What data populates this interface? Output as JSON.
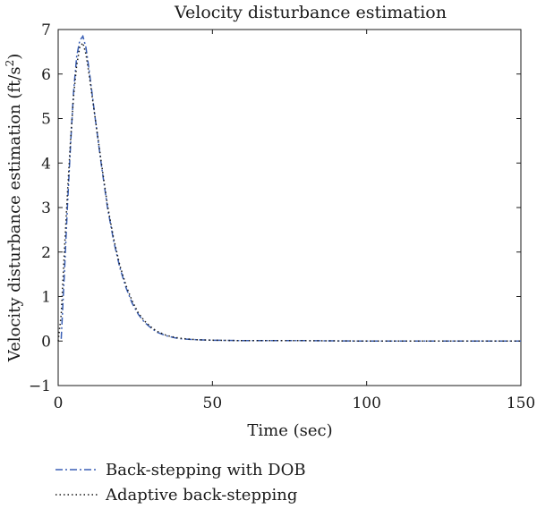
{
  "chart_data": {
    "type": "line",
    "title": "Velocity disturbance estimation",
    "xlabel": "Time (sec)",
    "ylabel_main": "Velocity disturbance estimation (ft/s",
    "ylabel_sup": "2",
    "ylabel_close": ")",
    "xlim": [
      0,
      150
    ],
    "ylim": [
      -1,
      7
    ],
    "xticks": [
      "0",
      "50",
      "100",
      "150"
    ],
    "yticks": [
      "−1",
      "0",
      "1",
      "2",
      "3",
      "4",
      "5",
      "6",
      "7"
    ],
    "grid": false,
    "legend_position": "below",
    "series": [
      {
        "name": "Back-stepping with DOB",
        "style": "dash-dot",
        "color": "#3a5fb5",
        "x": [
          1,
          2,
          3,
          4,
          5,
          6,
          7,
          8,
          9,
          10,
          12,
          14,
          16,
          18,
          20,
          22,
          24,
          26,
          28,
          30,
          32,
          35,
          38,
          40,
          45,
          50,
          60,
          80,
          100,
          120,
          140,
          150
        ],
        "y": [
          0.05,
          1.5,
          3.0,
          4.4,
          5.6,
          6.4,
          6.75,
          6.85,
          6.6,
          6.1,
          5.0,
          3.95,
          3.0,
          2.25,
          1.65,
          1.2,
          0.85,
          0.6,
          0.42,
          0.3,
          0.2,
          0.12,
          0.07,
          0.05,
          0.03,
          0.02,
          0.01,
          0.01,
          0.0,
          0.0,
          0.0,
          0.0
        ]
      },
      {
        "name": "Adaptive back-stepping",
        "style": "dotted",
        "color": "#1a1a1a",
        "x": [
          0,
          1,
          2,
          3,
          4,
          5,
          6,
          7,
          8,
          9,
          10,
          12,
          14,
          16,
          18,
          20,
          22,
          24,
          26,
          28,
          30,
          32,
          35,
          38,
          40,
          45,
          50,
          60,
          80,
          100,
          120,
          140,
          150
        ],
        "y": [
          0.0,
          0.6,
          2.0,
          3.3,
          4.5,
          5.5,
          6.2,
          6.6,
          6.7,
          6.45,
          6.0,
          5.0,
          4.0,
          3.05,
          2.3,
          1.7,
          1.25,
          0.9,
          0.63,
          0.45,
          0.32,
          0.22,
          0.13,
          0.08,
          0.06,
          0.03,
          0.02,
          0.01,
          0.01,
          0.0,
          0.0,
          0.0,
          0.0
        ]
      }
    ]
  }
}
